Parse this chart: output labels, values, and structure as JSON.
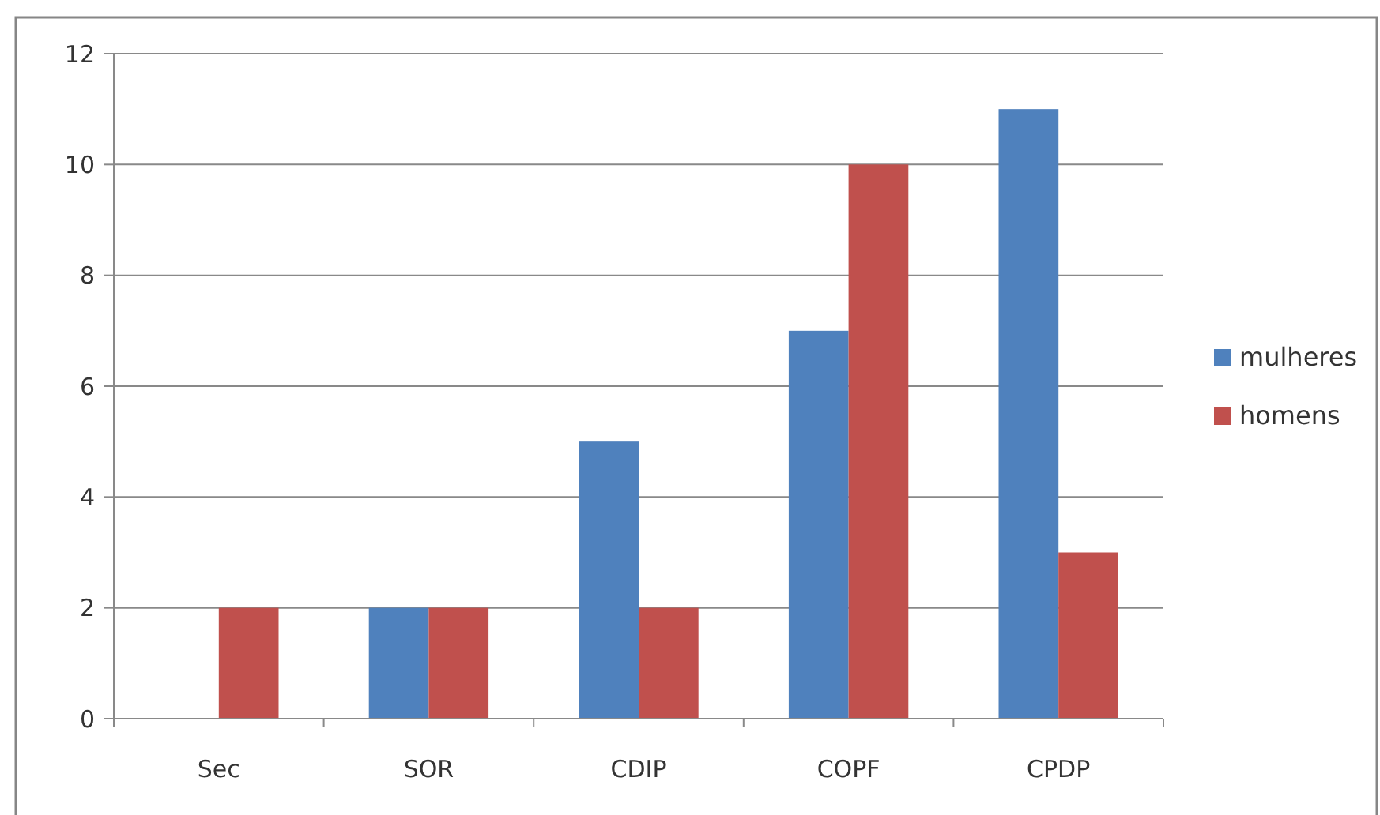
{
  "chart_data": {
    "type": "bar",
    "categories": [
      "Sec",
      "SOR",
      "CDIP",
      "COPF",
      "CPDP"
    ],
    "series": [
      {
        "name": "mulheres",
        "color": "#4f81bd",
        "values": [
          null,
          2,
          5,
          7,
          11
        ]
      },
      {
        "name": "homens",
        "color": "#c0504d",
        "values": [
          2,
          2,
          2,
          10,
          3
        ]
      }
    ],
    "ylim": [
      0,
      12
    ],
    "yticks": [
      0,
      2,
      4,
      6,
      8,
      10,
      12
    ],
    "grid": "y",
    "legend": "right"
  }
}
